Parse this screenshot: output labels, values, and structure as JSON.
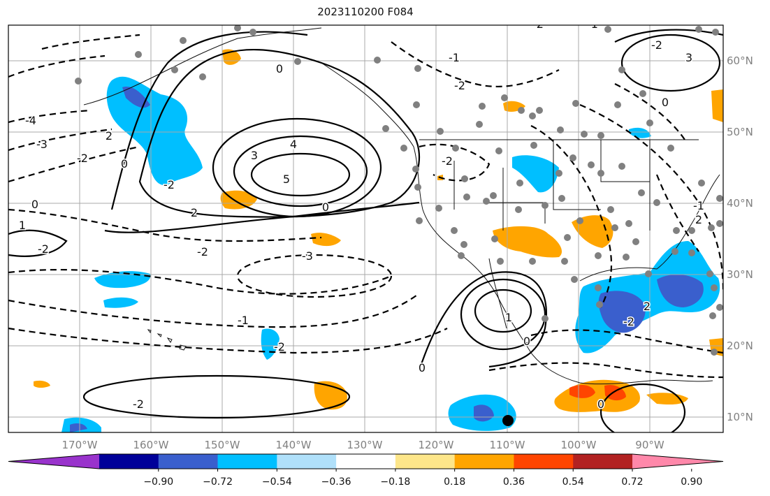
{
  "title": "2023110200 F084",
  "lon_labels": [
    "170°W",
    "160°W",
    "150°W",
    "140°W",
    "130°W",
    "120°W",
    "110°W",
    "100°W",
    "90°W"
  ],
  "lat_labels": [
    "60°N",
    "50°N",
    "40°N",
    "30°N",
    "20°N",
    "10°N"
  ],
  "colorbar": {
    "colors": [
      "#9933cc",
      "#000099",
      "#3a5fcd",
      "#00bfff",
      "#b0e0fa",
      "#ffffff",
      "#fde68a",
      "#ffa500",
      "#ff4500",
      "#b22222",
      "#ff88aa"
    ],
    "ticks": [
      "−0.90",
      "−0.72",
      "−0.54",
      "−0.36",
      "−0.18",
      "0.18",
      "0.36",
      "0.54",
      "0.72",
      "0.90"
    ]
  },
  "contour_labels": [
    "-4",
    "-3",
    "-2",
    "0",
    "1",
    "-2",
    "-2",
    "2",
    "3",
    "4",
    "5",
    "0",
    "2",
    "0",
    "-2",
    "-3",
    "-1",
    "-2",
    "-1",
    "-2",
    "3",
    "-2",
    "-1",
    "-2",
    "0",
    "0",
    "1",
    "2",
    "-2",
    "-2",
    "0",
    "-2",
    "-1",
    "0",
    "2",
    "0"
  ]
}
